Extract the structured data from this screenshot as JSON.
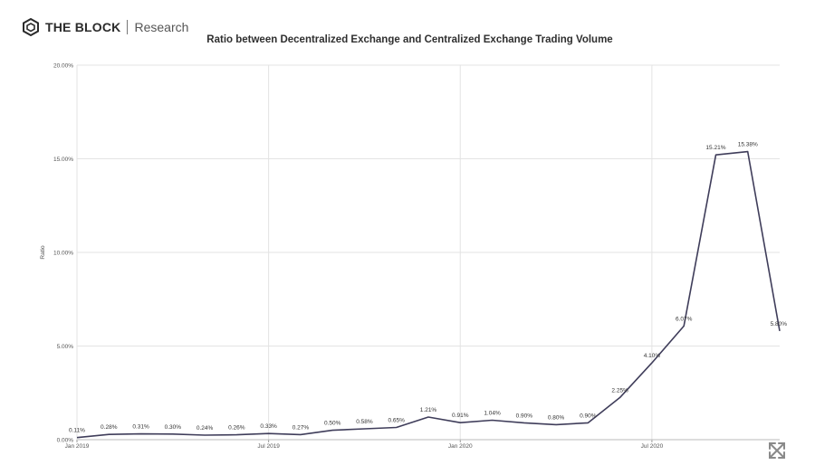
{
  "header": {
    "brand_name": "THE BLOCK",
    "brand_sub": "Research",
    "logo_icon": "the-block-cube-icon"
  },
  "controls": {
    "fullscreen_icon": "expand-arrows-icon"
  },
  "chart_data": {
    "type": "line",
    "title": "Ratio between Decentralized Exchange and Centralized Exchange Trading Volume",
    "xlabel": "",
    "ylabel": "Ratio",
    "ylim": [
      0,
      20
    ],
    "yticks": [
      "0.00%",
      "5.00%",
      "10.00%",
      "15.00%",
      "20.00%"
    ],
    "xticks": [
      "Jan 2019",
      "Jul 2019",
      "Jan 2020",
      "Jul 2020"
    ],
    "grid": true,
    "line_color": "#3f3d5a",
    "series": [
      {
        "name": "",
        "x": [
          "2019-01",
          "2019-02",
          "2019-03",
          "2019-04",
          "2019-05",
          "2019-06",
          "2019-07",
          "2019-08",
          "2019-09",
          "2019-10",
          "2019-11",
          "2019-12",
          "2020-01",
          "2020-02",
          "2020-03",
          "2020-04",
          "2020-05",
          "2020-06",
          "2020-07",
          "2020-08",
          "2020-09",
          "2020-10",
          "2020-11"
        ],
        "values": [
          0.11,
          0.28,
          0.31,
          0.3,
          0.24,
          0.26,
          0.33,
          0.27,
          0.5,
          0.58,
          0.65,
          1.21,
          0.91,
          1.04,
          0.9,
          0.8,
          0.9,
          2.25,
          4.1,
          6.07,
          15.21,
          15.38,
          5.8
        ],
        "labels": [
          "0.11%",
          "0.28%",
          "0.31%",
          "0.30%",
          "0.24%",
          "0.26%",
          "0.33%",
          "0.27%",
          "0.50%",
          "0.58%",
          "0.65%",
          "1.21%",
          "0.91%",
          "1.04%",
          "0.90%",
          "0.80%",
          "0.90%",
          "2.25%",
          "4.10%",
          "6.07%",
          "15.21%",
          "15.38%",
          "5.80%"
        ]
      }
    ]
  }
}
